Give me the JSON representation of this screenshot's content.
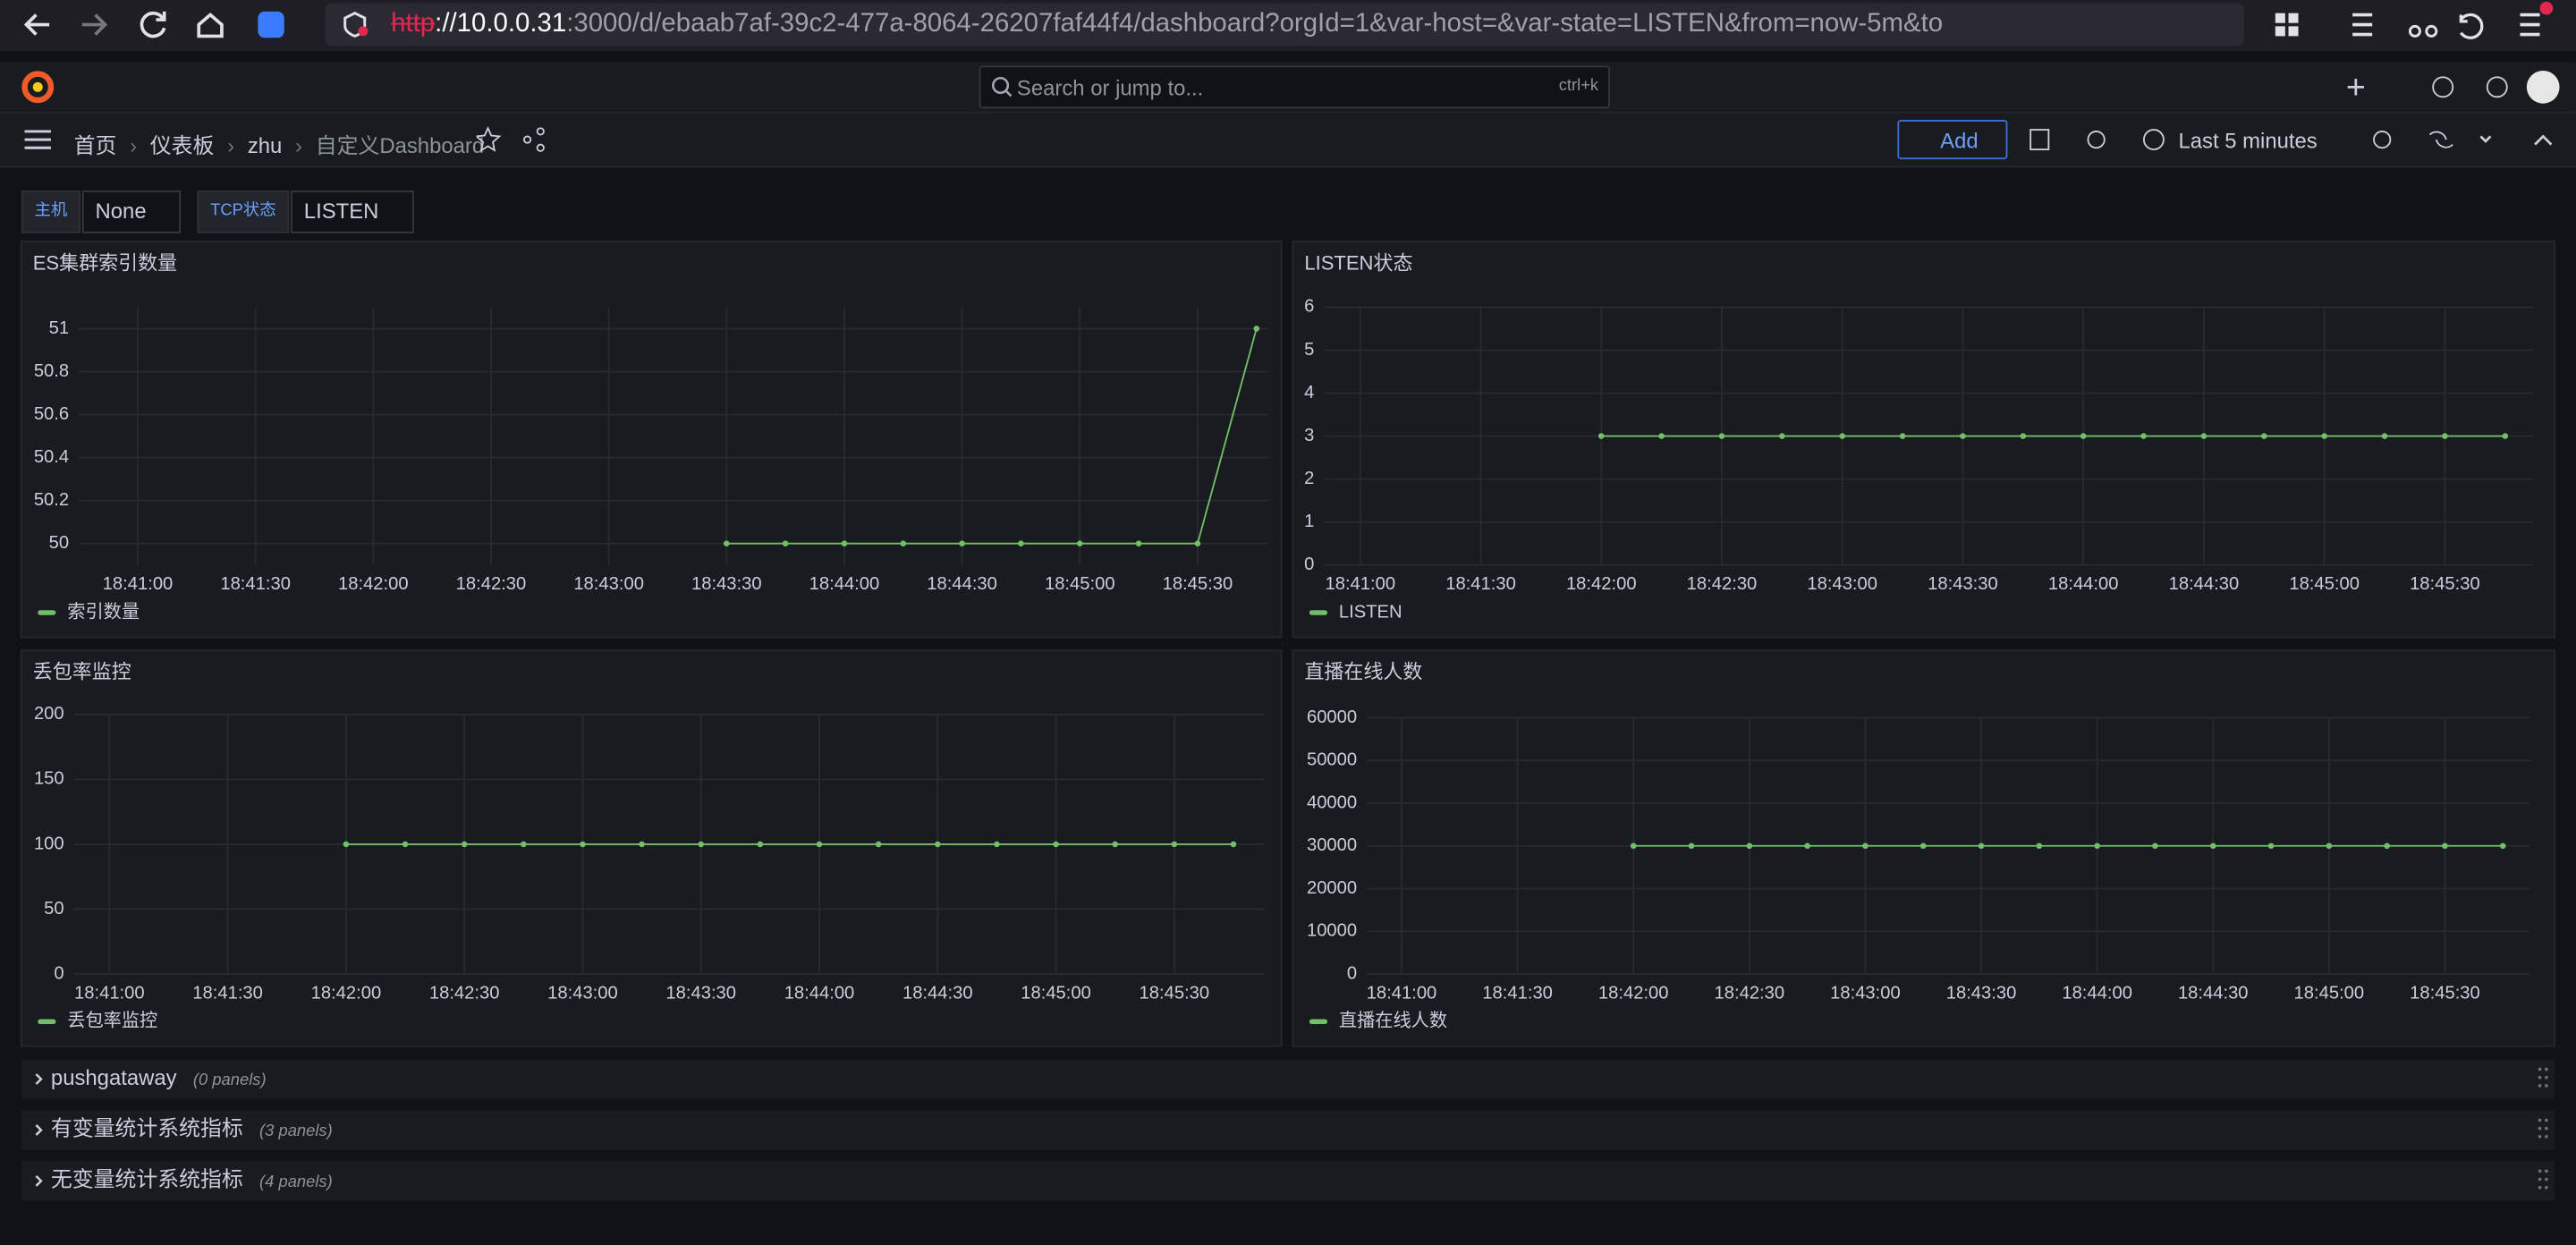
{
  "browser": {
    "url_scheme": "http",
    "url_host": "://10.0.0.31",
    "url_rest": ":3000/d/ebaab7af-39c2-477a-8064-26207faf44f4/dashboard?orgId=1&var-host=&var-state=LISTEN&from=now-5m&to"
  },
  "topbar": {
    "search_placeholder": "Search or jump to...",
    "search_shortcut": "ctrl+k"
  },
  "breadcrumbs": [
    "首页",
    "仪表板",
    "zhu",
    "自定义Dashboard"
  ],
  "toolbar": {
    "add": "Add",
    "time_range": "Last 5 minutes"
  },
  "variables": [
    {
      "label": "主机",
      "value": "None"
    },
    {
      "label": "TCP状态",
      "value": "LISTEN"
    }
  ],
  "chart_data": [
    {
      "type": "line",
      "title": "ES集群索引数量",
      "grid": true,
      "legend": "bottom-left",
      "x": [
        "18:43:30",
        "18:43:45",
        "18:44:00",
        "18:44:15",
        "18:44:30",
        "18:44:45",
        "18:45:00",
        "18:45:15",
        "18:45:30",
        "18:45:45"
      ],
      "series": [
        {
          "name": "索引数量",
          "color": "#73bf69",
          "values": [
            50,
            50,
            50,
            50,
            50,
            50,
            50,
            50,
            50,
            51
          ]
        }
      ],
      "xlim": [
        "18:40:45",
        "18:45:48"
      ],
      "xticks": [
        "18:41:00",
        "18:41:30",
        "18:42:00",
        "18:42:30",
        "18:43:00",
        "18:43:30",
        "18:44:00",
        "18:44:30",
        "18:45:00",
        "18:45:30"
      ],
      "ylim": [
        49.9,
        51.1
      ],
      "yticks": [
        50,
        50.2,
        50.4,
        50.6,
        50.8,
        51
      ]
    },
    {
      "type": "line",
      "title": "LISTEN状态",
      "grid": true,
      "legend": "bottom-left",
      "x": [
        "18:42:00",
        "18:42:15",
        "18:42:30",
        "18:42:45",
        "18:43:00",
        "18:43:15",
        "18:43:30",
        "18:43:45",
        "18:44:00",
        "18:44:15",
        "18:44:30",
        "18:44:45",
        "18:45:00",
        "18:45:15",
        "18:45:30",
        "18:45:45"
      ],
      "series": [
        {
          "name": "LISTEN",
          "color": "#73bf69",
          "values": [
            3,
            3,
            3,
            3,
            3,
            3,
            3,
            3,
            3,
            3,
            3,
            3,
            3,
            3,
            3,
            3
          ]
        }
      ],
      "xlim": [
        "18:40:51",
        "18:45:52"
      ],
      "xticks": [
        "18:41:00",
        "18:41:30",
        "18:42:00",
        "18:42:30",
        "18:43:00",
        "18:43:30",
        "18:44:00",
        "18:44:30",
        "18:45:00",
        "18:45:30"
      ],
      "ylim": [
        0,
        6
      ],
      "yticks": [
        0,
        1,
        2,
        3,
        4,
        5,
        6
      ]
    },
    {
      "type": "line",
      "title": "丢包率监控",
      "grid": true,
      "legend": "bottom-left",
      "x": [
        "18:42:00",
        "18:42:15",
        "18:42:30",
        "18:42:45",
        "18:43:00",
        "18:43:15",
        "18:43:30",
        "18:43:45",
        "18:44:00",
        "18:44:15",
        "18:44:30",
        "18:44:45",
        "18:45:00",
        "18:45:15",
        "18:45:30",
        "18:45:45"
      ],
      "series": [
        {
          "name": "丢包率监控",
          "color": "#73bf69",
          "values": [
            100,
            100,
            100,
            100,
            100,
            100,
            100,
            100,
            100,
            100,
            100,
            100,
            100,
            100,
            100,
            100
          ]
        }
      ],
      "xlim": [
        "18:40:51",
        "18:45:53"
      ],
      "xticks": [
        "18:41:00",
        "18:41:30",
        "18:42:00",
        "18:42:30",
        "18:43:00",
        "18:43:30",
        "18:44:00",
        "18:44:30",
        "18:45:00",
        "18:45:30"
      ],
      "ylim": [
        0,
        200
      ],
      "yticks": [
        0,
        50,
        100,
        150,
        200
      ]
    },
    {
      "type": "line",
      "title": "直播在线人数",
      "grid": true,
      "legend": "bottom-left",
      "x": [
        "18:42:00",
        "18:42:15",
        "18:42:30",
        "18:42:45",
        "18:43:00",
        "18:43:15",
        "18:43:30",
        "18:43:45",
        "18:44:00",
        "18:44:15",
        "18:44:30",
        "18:44:45",
        "18:45:00",
        "18:45:15",
        "18:45:30",
        "18:45:45"
      ],
      "series": [
        {
          "name": "直播在线人数",
          "color": "#73bf69",
          "values": [
            30000,
            30000,
            30000,
            30000,
            30000,
            30000,
            30000,
            30000,
            30000,
            30000,
            30000,
            30000,
            30000,
            30000,
            30000,
            30000
          ]
        }
      ],
      "xlim": [
        "18:40:51",
        "18:45:52"
      ],
      "xticks": [
        "18:41:00",
        "18:41:30",
        "18:42:00",
        "18:42:30",
        "18:43:00",
        "18:43:30",
        "18:44:00",
        "18:44:30",
        "18:45:00",
        "18:45:30"
      ],
      "ylim": [
        0,
        60000
      ],
      "yticks": [
        0,
        10000,
        20000,
        30000,
        40000,
        50000,
        60000
      ]
    }
  ],
  "rows": [
    {
      "title": "pushgataway",
      "count": "(0 panels)"
    },
    {
      "title": "有变量统计系统指标",
      "count": "(3 panels)"
    },
    {
      "title": "无变量统计系统指标",
      "count": "(4 panels)"
    }
  ]
}
